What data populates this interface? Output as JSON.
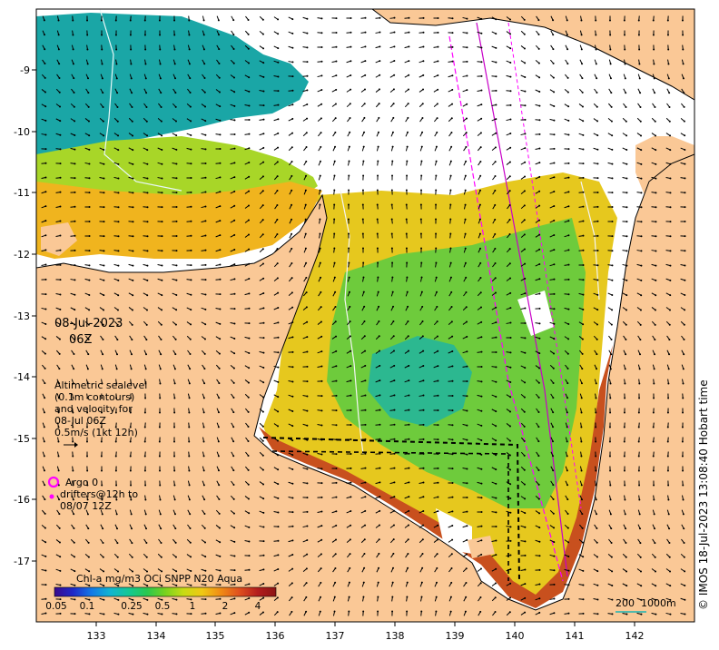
{
  "axes": {
    "lon_ticks": [
      "133",
      "134",
      "135",
      "136",
      "137",
      "138",
      "139",
      "140",
      "141",
      "142"
    ],
    "lat_ticks": [
      "-9",
      "-10",
      "-11",
      "-12",
      "-13",
      "-14",
      "-15",
      "-16",
      "-17"
    ]
  },
  "date": {
    "day": "08-Jul-2023",
    "time": "06Z"
  },
  "legend_text": {
    "line1": "Altimetric sealevel",
    "line2": "(0.1m contours)",
    "line3": "and velocity for",
    "line4": "08-Jul 06Z",
    "line5": "0.5m/s (1kt 12h)"
  },
  "argo": {
    "line1": "Argo 0",
    "line2": "drifters@12h to",
    "line3": "08/07 12Z"
  },
  "colorbar": {
    "title": "Chl-a mg/m3 OCi SNPP N20 Aqua",
    "ticks": [
      "0.05",
      "0.1",
      "0.25",
      "0.5",
      "1",
      "2",
      "4"
    ],
    "colors": [
      "#3a0a8c",
      "#1e28c8",
      "#1478e6",
      "#12b4d2",
      "#14c896",
      "#28c850",
      "#78d21e",
      "#c8dc14",
      "#f0c814",
      "#f08c14",
      "#e0501e",
      "#b41e1e",
      "#8c1414"
    ]
  },
  "scale_bar": {
    "label_a": "200",
    "label_b": "1000m"
  },
  "credit": "© IMOS 18-Jul-2023 13:08:40 Hobart time",
  "colors": {
    "land": "#fac896",
    "sea_bg": "#ffffff",
    "drifter": "#ff00ff"
  }
}
